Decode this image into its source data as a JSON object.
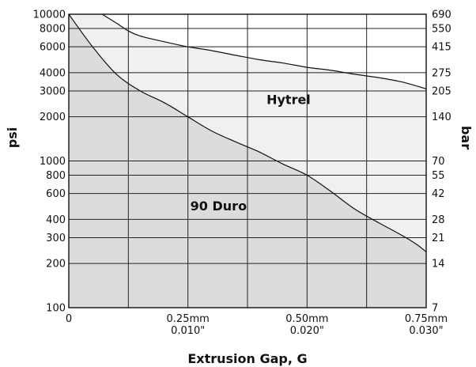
{
  "chart_data": {
    "type": "area",
    "title": "",
    "xlabel": "Extrusion Gap, G",
    "ylabel": "psi",
    "y2label": "bar",
    "xlim": [
      0,
      0.75
    ],
    "ylim": [
      100,
      10000
    ],
    "yscale": "log",
    "grid": true,
    "x_gridlines": [
      0.125,
      0.25,
      0.375,
      0.5,
      0.625
    ],
    "x_ticks": [
      {
        "value": 0,
        "label": "0",
        "label2": ""
      },
      {
        "value": 0.25,
        "label": "0.25mm",
        "label2": "0.010\""
      },
      {
        "value": 0.5,
        "label": "0.50mm",
        "label2": "0.020\""
      },
      {
        "value": 0.75,
        "label": "0.75mm",
        "label2": "0.030\""
      }
    ],
    "y_ticks": [
      {
        "value": 10000,
        "label": "10000"
      },
      {
        "value": 8000,
        "label": "8000"
      },
      {
        "value": 6000,
        "label": "6000"
      },
      {
        "value": 4000,
        "label": "4000"
      },
      {
        "value": 3000,
        "label": "3000"
      },
      {
        "value": 2000,
        "label": "2000"
      },
      {
        "value": 1000,
        "label": "1000"
      },
      {
        "value": 800,
        "label": "800"
      },
      {
        "value": 600,
        "label": "600"
      },
      {
        "value": 400,
        "label": "400"
      },
      {
        "value": 300,
        "label": "300"
      },
      {
        "value": 200,
        "label": "200"
      },
      {
        "value": 100,
        "label": "100"
      }
    ],
    "y2_ticks": [
      {
        "value": 10000,
        "label": "690"
      },
      {
        "value": 8000,
        "label": "550"
      },
      {
        "value": 6000,
        "label": "415"
      },
      {
        "value": 4000,
        "label": "275"
      },
      {
        "value": 3000,
        "label": "205"
      },
      {
        "value": 2000,
        "label": "140"
      },
      {
        "value": 1000,
        "label": "70"
      },
      {
        "value": 800,
        "label": "55"
      },
      {
        "value": 600,
        "label": "42"
      },
      {
        "value": 400,
        "label": "28"
      },
      {
        "value": 300,
        "label": "21"
      },
      {
        "value": 200,
        "label": "14"
      },
      {
        "value": 100,
        "label": "7"
      }
    ],
    "series": [
      {
        "name": "Hytrel",
        "fill": "#eff0f0",
        "x": [
          0.07,
          0.1,
          0.125,
          0.15,
          0.2,
          0.25,
          0.3,
          0.35,
          0.4,
          0.45,
          0.5,
          0.55,
          0.6,
          0.65,
          0.7,
          0.75
        ],
        "y": [
          10000,
          8700,
          7700,
          7100,
          6500,
          6000,
          5650,
          5250,
          4900,
          4650,
          4350,
          4150,
          3900,
          3700,
          3450,
          3100
        ]
      },
      {
        "name": "90 Duro",
        "fill": "#dcdcdf",
        "x": [
          0,
          0.05,
          0.1,
          0.15,
          0.2,
          0.25,
          0.3,
          0.35,
          0.4,
          0.45,
          0.5,
          0.55,
          0.6,
          0.65,
          0.7,
          0.73,
          0.75
        ],
        "y": [
          10000,
          6000,
          3900,
          3000,
          2500,
          2000,
          1600,
          1350,
          1150,
          950,
          800,
          620,
          470,
          380,
          310,
          270,
          240
        ]
      }
    ],
    "annotations": [
      {
        "text": "Hytrel",
        "x": 0.415,
        "y": 2450
      },
      {
        "text": "90 Duro",
        "x": 0.255,
        "y": 460
      }
    ]
  }
}
